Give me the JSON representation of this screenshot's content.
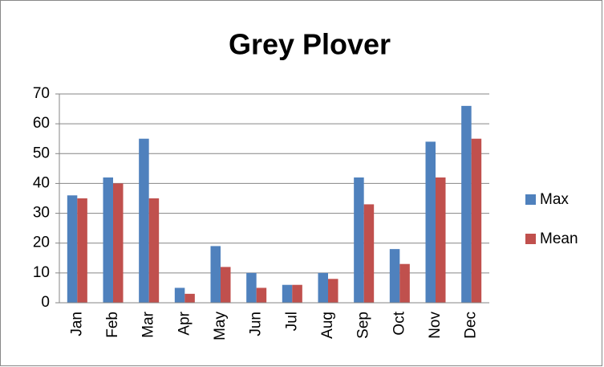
{
  "chart_data": {
    "type": "bar",
    "title": "Grey Plover",
    "categories": [
      "Jan",
      "Feb",
      "Mar",
      "Apr",
      "May",
      "Jun",
      "Jul",
      "Aug",
      "Sep",
      "Oct",
      "Nov",
      "Dec"
    ],
    "series": [
      {
        "name": "Max",
        "color": "#4f81bd",
        "values": [
          36,
          42,
          55,
          5,
          19,
          10,
          6,
          10,
          42,
          18,
          54,
          66
        ]
      },
      {
        "name": "Mean",
        "color": "#c0504d",
        "values": [
          35,
          40,
          35,
          3,
          12,
          5,
          6,
          8,
          33,
          13,
          42,
          55
        ]
      }
    ],
    "ylim": [
      0,
      70
    ],
    "yticks": [
      0,
      10,
      20,
      30,
      40,
      50,
      60,
      70
    ],
    "grid": true,
    "legend": "right"
  }
}
